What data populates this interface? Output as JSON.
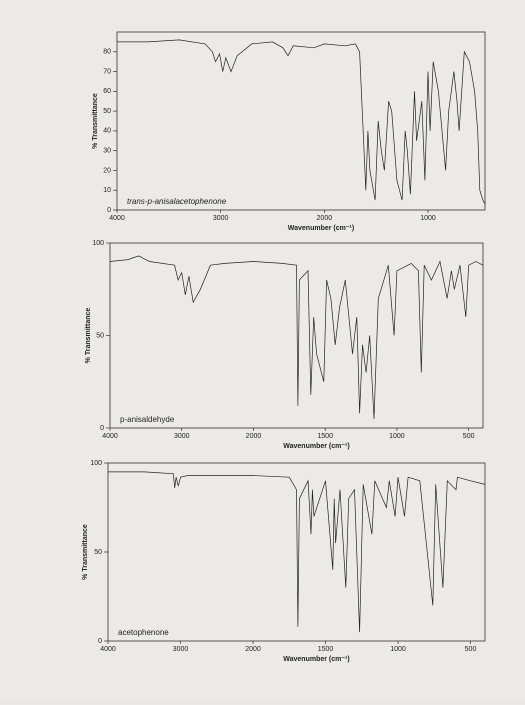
{
  "chart_data": [
    {
      "type": "line",
      "title": "trans-p-anisalacetophenone",
      "x_label": "Wavenumber (cm⁻¹)",
      "y_label": "% Transmittance",
      "color": "#222222",
      "xlim": [
        4000,
        450
      ],
      "ylim": [
        0,
        90
      ],
      "xticks": [
        4000,
        3000,
        2000,
        1000
      ],
      "yticks": [
        0,
        10,
        20,
        30,
        40,
        50,
        60,
        70,
        80
      ],
      "x": [
        4000,
        3700,
        3400,
        3150,
        3080,
        3050,
        3010,
        2980,
        2950,
        2900,
        2840,
        2700,
        2500,
        2400,
        2350,
        2300,
        2100,
        2000,
        1800,
        1700,
        1660,
        1600,
        1580,
        1560,
        1510,
        1480,
        1450,
        1420,
        1380,
        1350,
        1300,
        1250,
        1220,
        1200,
        1170,
        1130,
        1110,
        1060,
        1030,
        1000,
        980,
        950,
        900,
        830,
        800,
        750,
        720,
        700,
        650,
        600,
        550,
        520,
        500,
        470,
        450
      ],
      "values": [
        85,
        85,
        86,
        84,
        80,
        75,
        79,
        70,
        77,
        70,
        78,
        84,
        85,
        82,
        78,
        83,
        82,
        84,
        83,
        84,
        80,
        10,
        40,
        20,
        5,
        45,
        30,
        20,
        55,
        50,
        15,
        5,
        40,
        30,
        8,
        60,
        35,
        55,
        15,
        70,
        40,
        75,
        60,
        20,
        50,
        70,
        55,
        40,
        80,
        75,
        60,
        40,
        10,
        5,
        3
      ]
    },
    {
      "type": "line",
      "title": "p-anisaldehyde",
      "x_label": "Wavenumber (cm⁻¹)",
      "y_label": "% Transmittance",
      "color": "#222222",
      "x_scale_break": 2000,
      "xlim": [
        4000,
        400
      ],
      "ylim": [
        0,
        100
      ],
      "xticks": [
        4000,
        3000,
        2000,
        1500,
        1000,
        500
      ],
      "yticks": [
        0,
        50,
        100
      ],
      "x": [
        4000,
        3750,
        3600,
        3450,
        3100,
        3050,
        3000,
        2950,
        2900,
        2840,
        2740,
        2600,
        2400,
        2000,
        1800,
        1700,
        1690,
        1680,
        1620,
        1600,
        1580,
        1560,
        1510,
        1490,
        1460,
        1430,
        1400,
        1360,
        1310,
        1280,
        1260,
        1240,
        1215,
        1190,
        1160,
        1130,
        1110,
        1060,
        1020,
        1000,
        900,
        850,
        830,
        810,
        760,
        700,
        650,
        620,
        600,
        560,
        520,
        500,
        450,
        400
      ],
      "values": [
        90,
        91,
        93,
        90,
        88,
        80,
        84,
        72,
        82,
        68,
        75,
        88,
        89,
        90,
        89,
        88,
        12,
        80,
        85,
        18,
        60,
        40,
        25,
        80,
        70,
        45,
        65,
        80,
        40,
        60,
        8,
        45,
        30,
        50,
        5,
        70,
        75,
        88,
        50,
        85,
        89,
        85,
        30,
        88,
        80,
        90,
        70,
        85,
        75,
        88,
        60,
        88,
        90,
        88
      ]
    },
    {
      "type": "line",
      "title": "acetophenone",
      "x_label": "Wavenumber (cm⁻¹)",
      "y_label": "% Transmittance",
      "color": "#222222",
      "x_scale_break": 2000,
      "xlim": [
        4000,
        400
      ],
      "ylim": [
        0,
        100
      ],
      "xticks": [
        4000,
        3000,
        2000,
        1500,
        1000,
        500
      ],
      "yticks": [
        0,
        50,
        100
      ],
      "x": [
        4000,
        3500,
        3100,
        3080,
        3060,
        3030,
        3000,
        2900,
        2500,
        2000,
        1750,
        1700,
        1690,
        1680,
        1620,
        1600,
        1590,
        1580,
        1500,
        1450,
        1440,
        1430,
        1400,
        1360,
        1340,
        1300,
        1265,
        1240,
        1180,
        1160,
        1080,
        1060,
        1020,
        1000,
        955,
        930,
        850,
        760,
        740,
        690,
        660,
        600,
        590,
        500,
        400
      ],
      "values": [
        95,
        95,
        94,
        86,
        92,
        87,
        92,
        93,
        93,
        93,
        92,
        85,
        8,
        80,
        90,
        60,
        85,
        70,
        90,
        40,
        80,
        55,
        85,
        30,
        80,
        85,
        5,
        88,
        60,
        90,
        75,
        90,
        70,
        92,
        70,
        92,
        90,
        20,
        88,
        30,
        90,
        85,
        92,
        90,
        88
      ]
    }
  ]
}
